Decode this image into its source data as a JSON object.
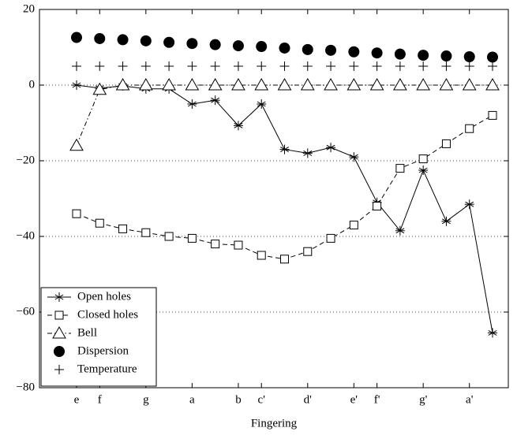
{
  "chart_data": {
    "type": "line",
    "xlabel": "Fingering",
    "categories": [
      "e",
      "f",
      null,
      "g",
      null,
      "a",
      null,
      "b",
      "c'",
      null,
      "d'",
      null,
      "e'",
      "f'",
      null,
      "g'",
      null,
      "a'",
      null
    ],
    "series": [
      {
        "name": "Open holes",
        "color": "#000000",
        "marker": "star",
        "linestyle": "solid",
        "values": [
          0,
          -0.8,
          -0.2,
          -1,
          -1,
          -5,
          -4,
          -10.7,
          -5,
          -17,
          -18,
          -16.5,
          -19,
          -31,
          -38.5,
          -22.5,
          -36,
          -31.5,
          -65.5
        ]
      },
      {
        "name": "Closed holes",
        "color": "#000000",
        "marker": "square",
        "linestyle": "dashed",
        "values": [
          -34,
          -36.5,
          -38,
          -39,
          -40,
          -40.5,
          -42,
          -42.3,
          -45,
          -46,
          -44,
          -40.5,
          -37,
          -32,
          -22,
          -19.5,
          -15.5,
          -11.5,
          -8
        ]
      },
      {
        "name": "Bell",
        "color": "#000000",
        "marker": "triangle",
        "linestyle": "dashdot",
        "values": [
          -16,
          -1.2,
          0,
          0,
          0,
          0,
          0,
          0,
          0,
          0,
          0,
          0,
          0,
          0,
          0,
          0,
          0,
          0,
          0
        ]
      },
      {
        "name": "Dispersion",
        "color": "#000000",
        "marker": "circle",
        "linestyle": "none",
        "values": [
          12.6,
          12.3,
          12,
          11.7,
          11.3,
          11,
          10.7,
          10.4,
          10.2,
          9.8,
          9.4,
          9.2,
          8.8,
          8.5,
          8.2,
          7.9,
          7.7,
          7.5,
          7.4
        ]
      },
      {
        "name": "Temperature",
        "color": "#000000",
        "marker": "plus",
        "linestyle": "none",
        "values": [
          5,
          5,
          5,
          5,
          5,
          5,
          5,
          5,
          5,
          5,
          5,
          5,
          5,
          5,
          5,
          5,
          5,
          5,
          5
        ]
      }
    ],
    "ylim": [
      -80,
      20
    ],
    "yticks": [
      {
        "value": -80,
        "label": "−80"
      },
      {
        "value": -60,
        "label": "−60"
      },
      {
        "value": -40,
        "label": "−40"
      },
      {
        "value": -20,
        "label": "−20"
      },
      0,
      20
    ],
    "grid": true,
    "legend": "lower left"
  }
}
